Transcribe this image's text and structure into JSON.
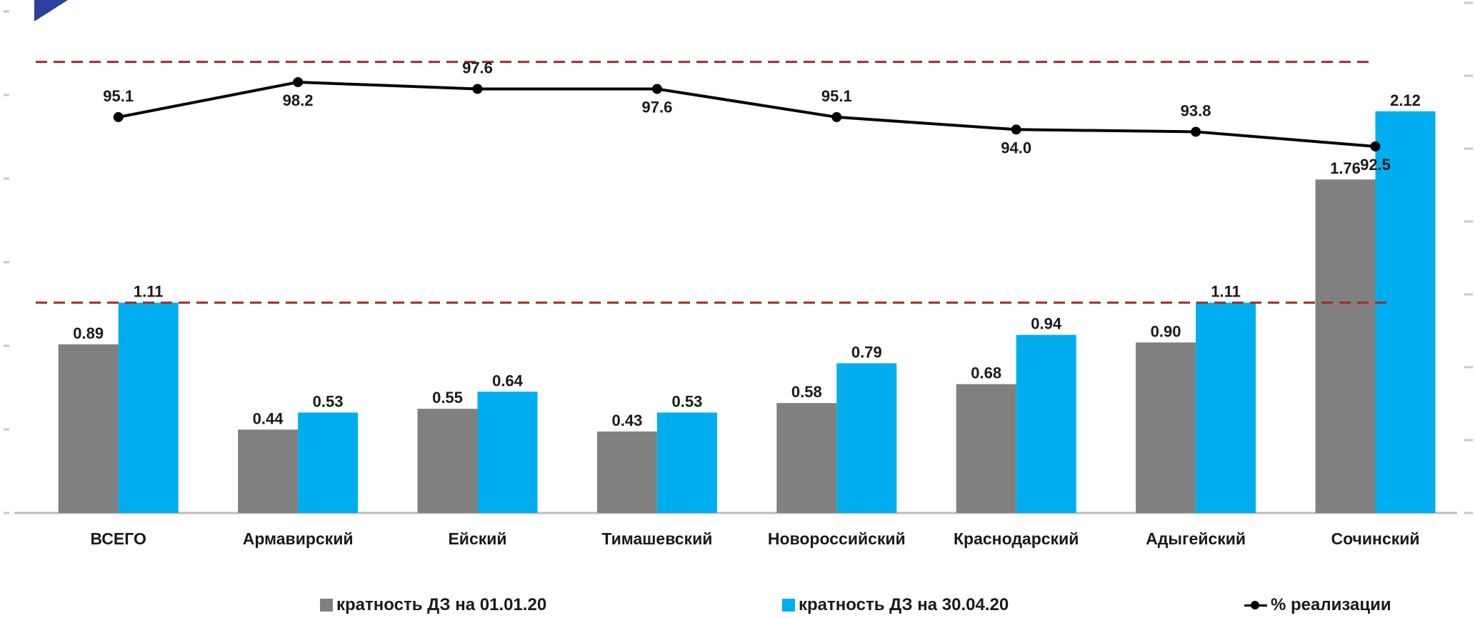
{
  "chart_data": {
    "type": "bar",
    "categories": [
      "ВСЕГО",
      "Армавирский",
      "Ейский",
      "Тимашевский",
      "Новороссийский",
      "Краснодарский",
      "Адыгейский",
      "Сочинский"
    ],
    "series": [
      {
        "name": "кратность ДЗ на 01.01.20",
        "kind": "bar",
        "axis": "left",
        "color": "#808080",
        "values": [
          0.89,
          0.44,
          0.55,
          0.43,
          0.58,
          0.68,
          0.9,
          1.76
        ],
        "labels": [
          "0.89",
          "0.44",
          "0.55",
          "0.43",
          "0.58",
          "0.68",
          "0.90",
          "1.76"
        ]
      },
      {
        "name": "кратность ДЗ на 30.04.20",
        "kind": "bar",
        "axis": "left",
        "color": "#00aeef",
        "values": [
          1.11,
          0.53,
          0.64,
          0.53,
          0.79,
          0.94,
          1.11,
          2.12
        ],
        "labels": [
          "1.11",
          "0.53",
          "0.64",
          "0.53",
          "0.79",
          "0.94",
          "1.11",
          "2.12"
        ]
      },
      {
        "name": "% реализации",
        "kind": "line",
        "axis": "right",
        "color": "#000000",
        "values": [
          95.1,
          98.2,
          97.6,
          97.6,
          95.1,
          94.0,
          93.8,
          92.5
        ],
        "labels": [
          "95.1",
          "98.2",
          "97.6",
          "97.6",
          "95.1",
          "94.0",
          "93.8",
          "92.5"
        ]
      }
    ],
    "reference_lines": [
      {
        "axis": "left",
        "value": 1.11,
        "color": "#a52a2a",
        "style": "dashed"
      },
      {
        "axis": "right",
        "value": 100,
        "color": "#a52a2a",
        "style": "dashed"
      }
    ],
    "ylim_left": [
      0,
      2.5
    ],
    "ylim_right": [
      60,
      102
    ],
    "legend_position": "bottom",
    "grid": false,
    "title": "",
    "xlabel": "",
    "ylabel": ""
  }
}
